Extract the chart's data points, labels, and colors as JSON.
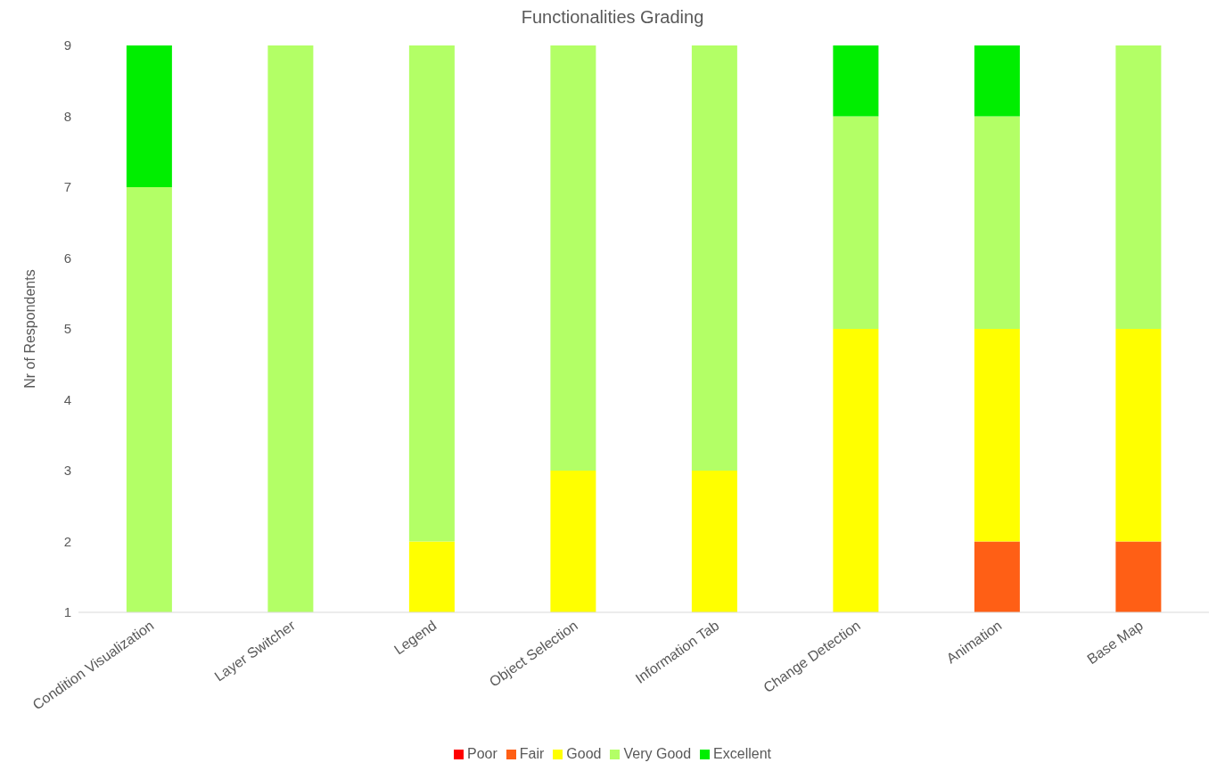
{
  "chart_data": {
    "type": "bar",
    "title": "Functionalities Grading",
    "ylabel": "Nr of Respondents",
    "categories": [
      "Condition Visualization",
      "Layer Switcher",
      "Legend",
      "Object Selection",
      "Information Tab",
      "Change Detection",
      "Animation",
      "Base Map"
    ],
    "series": [
      {
        "name": "Poor",
        "color": "#ff0000",
        "values": [
          null,
          null,
          null,
          null,
          null,
          null,
          null,
          null
        ]
      },
      {
        "name": "Fair",
        "color": "#ff5f15",
        "values": [
          null,
          null,
          null,
          null,
          null,
          null,
          2,
          2
        ]
      },
      {
        "name": "Good",
        "color": "#ffff00",
        "values": [
          null,
          null,
          2,
          3,
          3,
          5,
          3,
          3
        ]
      },
      {
        "name": "Very Good",
        "color": "#b3ff66",
        "values": [
          7,
          9,
          7,
          6,
          6,
          3,
          3,
          4
        ]
      },
      {
        "name": "Excellent",
        "color": "#00ee00",
        "values": [
          2,
          null,
          null,
          null,
          null,
          1,
          1,
          null
        ]
      }
    ],
    "stacked": true,
    "ylim": [
      1,
      9
    ],
    "yticks": [
      1,
      2,
      3,
      4,
      5,
      6,
      7,
      8,
      9
    ],
    "grid": false,
    "legend": "bottom"
  }
}
